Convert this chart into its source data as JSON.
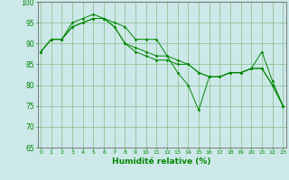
{
  "xlabel": "Humidité relative (%)",
  "background_color": "#cce8e8",
  "grid_color": "#88bb88",
  "line_color": "#008800",
  "ylim": [
    65,
    100
  ],
  "xlim": [
    0,
    23
  ],
  "yticks": [
    65,
    70,
    75,
    80,
    85,
    90,
    95,
    100
  ],
  "xticks": [
    0,
    1,
    2,
    3,
    4,
    5,
    6,
    7,
    8,
    9,
    10,
    11,
    12,
    13,
    14,
    15,
    16,
    17,
    18,
    19,
    20,
    21,
    22,
    23
  ],
  "series": [
    [
      88,
      91,
      91,
      95,
      96,
      97,
      96,
      95,
      94,
      91,
      91,
      91,
      87,
      83,
      80,
      74,
      82,
      82,
      83,
      83,
      84,
      88,
      81,
      75
    ],
    [
      88,
      91,
      91,
      94,
      95,
      96,
      96,
      94,
      90,
      89,
      88,
      87,
      87,
      86,
      85,
      83,
      82,
      82,
      83,
      83,
      84,
      84,
      80,
      75
    ],
    [
      88,
      91,
      91,
      94,
      95,
      96,
      96,
      94,
      90,
      88,
      87,
      86,
      86,
      85,
      85,
      83,
      82,
      82,
      83,
      83,
      84,
      84,
      80,
      75
    ]
  ]
}
